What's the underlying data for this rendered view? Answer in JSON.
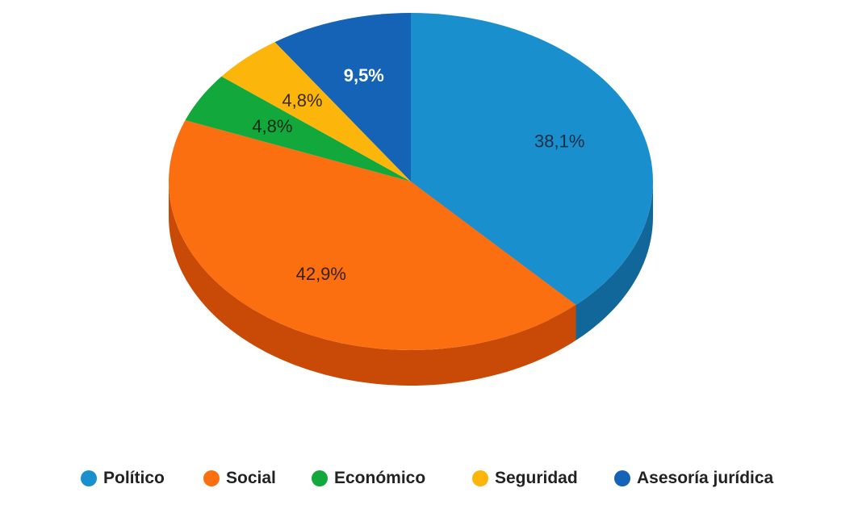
{
  "chart_data": {
    "type": "pie",
    "style": "3d",
    "title": "",
    "start_angle_deg": 0,
    "direction": "clockwise",
    "slices": [
      {
        "label": "Político",
        "value": 38.1,
        "value_label": "38,1%",
        "color": "#1a8fce",
        "side_color": "#11679a",
        "label_color": "#1b2f45",
        "label_bold": false
      },
      {
        "label": "Social",
        "value": 42.9,
        "value_label": "42,9%",
        "color": "#fb6f10",
        "side_color": "#c94a07",
        "label_color": "#3a2210",
        "label_bold": false
      },
      {
        "label": "Económico",
        "value": 4.8,
        "value_label": "4,8%",
        "color": "#13a83c",
        "side_color": "#0d7a2b",
        "label_color": "#0f2a16",
        "label_bold": false
      },
      {
        "label": "Seguridad",
        "value": 4.8,
        "value_label": "4,8%",
        "color": "#fcb50a",
        "side_color": "#c98b04",
        "label_color": "#3a2a05",
        "label_bold": false
      },
      {
        "label": "Asesoría jurídica",
        "value": 9.5,
        "value_label": "9,5%",
        "color": "#1463b6",
        "side_color": "#0d4988",
        "label_color": "#ffffff",
        "label_bold": true
      }
    ],
    "legend": {
      "position": "bottom",
      "entries": [
        "Político",
        "Social",
        "Económico",
        "Seguridad",
        "Asesoría jurídica"
      ]
    }
  }
}
